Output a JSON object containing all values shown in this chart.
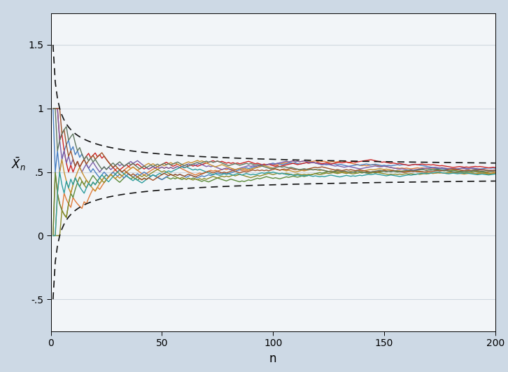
{
  "n_max": 200,
  "n_series": 10,
  "p": 0.5,
  "ylim": [
    -0.75,
    1.75
  ],
  "yticks": [
    -0.5,
    0,
    0.5,
    1,
    1.5
  ],
  "ytick_labels": [
    "-.5",
    "0",
    ".5",
    "1",
    "1.5"
  ],
  "xlim": [
    0,
    200
  ],
  "xticks": [
    0,
    50,
    100,
    150,
    200
  ],
  "xlabel": "n",
  "ylabel": "$\\bar{X}_n$",
  "background_color": "#cdd9e5",
  "plot_bg_color": "#f2f5f8",
  "grid_color": "#d0d8e0",
  "dashed_color": "#111111",
  "line_colors": [
    "#e07b39",
    "#5b8a3a",
    "#4a7fc1",
    "#cc2222",
    "#8b8b2a",
    "#7b5ea7",
    "#c89030",
    "#2e9e9e",
    "#a05228",
    "#607860"
  ],
  "seeds": [
    42,
    123,
    7,
    99,
    2024,
    17,
    333,
    88,
    456,
    11
  ],
  "ci_scale": 1.0
}
